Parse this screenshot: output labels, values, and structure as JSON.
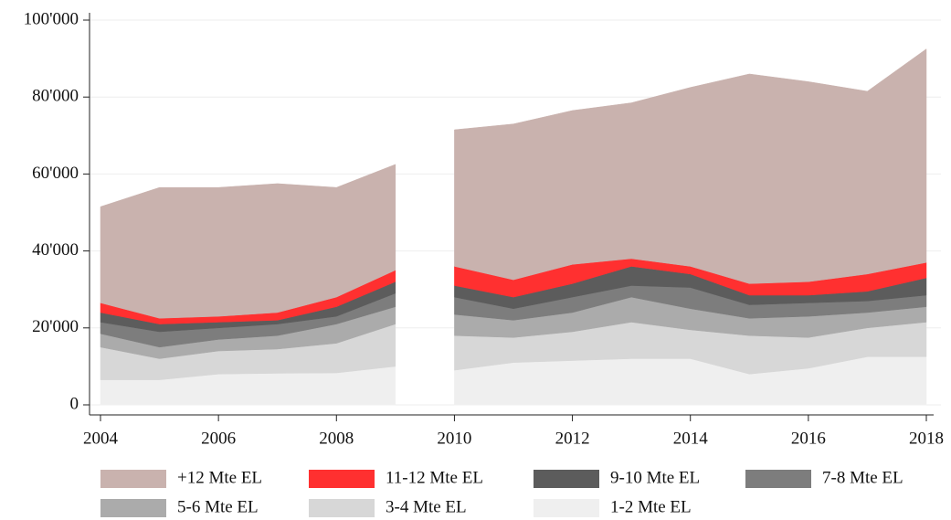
{
  "chart_data": {
    "type": "stacked_area",
    "x": [
      2004,
      2005,
      2006,
      2007,
      2008,
      2009,
      2010,
      2011,
      2012,
      2013,
      2014,
      2015,
      2016,
      2017,
      2018
    ],
    "segments": [
      [
        2004,
        2009
      ],
      [
        2010,
        2018
      ]
    ],
    "series": [
      {
        "name": "+12 Mte EL",
        "color": "#c9b2ae",
        "values": [
          25000,
          34000,
          33500,
          33500,
          28500,
          27500,
          35500,
          40500,
          40000,
          40500,
          46500,
          54500,
          52000,
          47500,
          55500
        ]
      },
      {
        "name": "11-12 Mte EL",
        "color": "#ff3030",
        "values": [
          2500,
          1500,
          1500,
          2000,
          2500,
          3000,
          5000,
          4500,
          5000,
          2000,
          2000,
          3000,
          3500,
          4500,
          4000
        ]
      },
      {
        "name": "9-10 Mte EL",
        "color": "#5c5c5c",
        "values": [
          2500,
          2000,
          1500,
          1000,
          2500,
          3000,
          3000,
          3000,
          3500,
          5000,
          3500,
          2500,
          2000,
          2500,
          4500
        ]
      },
      {
        "name": "7-8 Mte EL",
        "color": "#7d7d7d",
        "values": [
          3000,
          4000,
          3000,
          3000,
          2000,
          3500,
          4500,
          3000,
          4000,
          3000,
          5500,
          3500,
          3500,
          3000,
          3000
        ]
      },
      {
        "name": "5-6 Mte EL",
        "color": "#ababab",
        "values": [
          3500,
          3000,
          3000,
          3500,
          5000,
          4500,
          5500,
          4500,
          5000,
          6500,
          5500,
          4500,
          5500,
          4000,
          4000
        ]
      },
      {
        "name": "3-4 Mte EL",
        "color": "#d7d7d7",
        "values": [
          8500,
          5500,
          6000,
          6300,
          7700,
          11000,
          9000,
          6500,
          7500,
          9500,
          7500,
          10000,
          8000,
          7500,
          9000
        ]
      },
      {
        "name": "1-2 Mte EL",
        "color": "#efefef",
        "values": [
          6500,
          6500,
          8000,
          8200,
          8300,
          10000,
          9000,
          11000,
          11500,
          12000,
          12000,
          8000,
          9500,
          12500,
          12500
        ]
      }
    ],
    "xlim": [
      2004,
      2018
    ],
    "xticks": [
      2004,
      2006,
      2008,
      2010,
      2012,
      2014,
      2016,
      2018
    ],
    "ylim": [
      0,
      100000
    ],
    "yticks": [
      0,
      {
        "value": 20000,
        "label": "20'000"
      },
      {
        "value": 40000,
        "label": "40'000"
      },
      {
        "value": 60000,
        "label": "60'000"
      },
      {
        "value": 80000,
        "label": "80'000"
      },
      {
        "value": 100000,
        "label": "100'000"
      }
    ],
    "grid": true
  }
}
